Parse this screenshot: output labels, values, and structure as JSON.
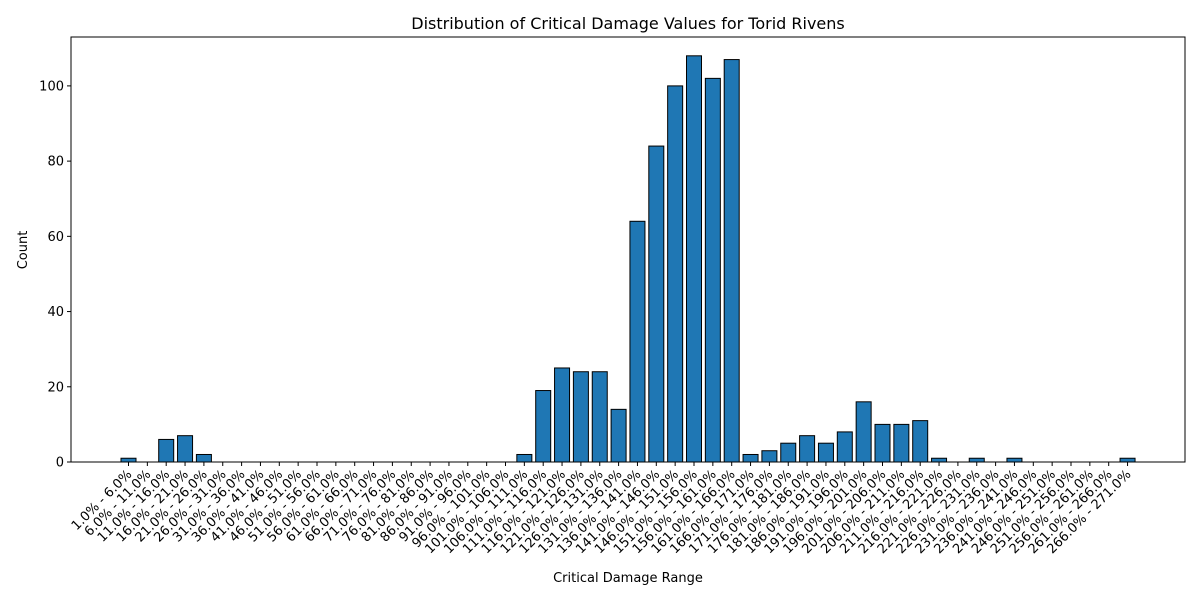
{
  "chart_data": {
    "type": "bar",
    "title": "Distribution of Critical Damage Values for Torid Rivens",
    "xlabel": "Critical Damage Range",
    "ylabel": "Count",
    "ylim": [
      0,
      113
    ],
    "yticks": [
      0,
      20,
      40,
      60,
      80,
      100
    ],
    "grid": false,
    "bar_color": "#1f77b4",
    "edge_color": "#000000",
    "categories": [
      "1.0% - 6.0%",
      "6.0% - 11.0%",
      "11.0% - 16.0%",
      "16.0% - 21.0%",
      "21.0% - 26.0%",
      "26.0% - 31.0%",
      "31.0% - 36.0%",
      "36.0% - 41.0%",
      "41.0% - 46.0%",
      "46.0% - 51.0%",
      "51.0% - 56.0%",
      "56.0% - 61.0%",
      "61.0% - 66.0%",
      "66.0% - 71.0%",
      "71.0% - 76.0%",
      "76.0% - 81.0%",
      "81.0% - 86.0%",
      "86.0% - 91.0%",
      "91.0% - 96.0%",
      "96.0% - 101.0%",
      "101.0% - 106.0%",
      "106.0% - 111.0%",
      "111.0% - 116.0%",
      "116.0% - 121.0%",
      "121.0% - 126.0%",
      "126.0% - 131.0%",
      "131.0% - 136.0%",
      "136.0% - 141.0%",
      "141.0% - 146.0%",
      "146.0% - 151.0%",
      "151.0% - 156.0%",
      "156.0% - 161.0%",
      "161.0% - 166.0%",
      "166.0% - 171.0%",
      "171.0% - 176.0%",
      "176.0% - 181.0%",
      "181.0% - 186.0%",
      "186.0% - 191.0%",
      "191.0% - 196.0%",
      "196.0% - 201.0%",
      "201.0% - 206.0%",
      "206.0% - 211.0%",
      "211.0% - 216.0%",
      "216.0% - 221.0%",
      "221.0% - 226.0%",
      "226.0% - 231.0%",
      "231.0% - 236.0%",
      "236.0% - 241.0%",
      "241.0% - 246.0%",
      "246.0% - 251.0%",
      "251.0% - 256.0%",
      "256.0% - 261.0%",
      "261.0% - 266.0%",
      "266.0% - 271.0%"
    ],
    "values": [
      1,
      0,
      6,
      7,
      2,
      0,
      0,
      0,
      0,
      0,
      0,
      0,
      0,
      0,
      0,
      0,
      0,
      0,
      0,
      0,
      0,
      2,
      19,
      25,
      24,
      24,
      14,
      64,
      84,
      100,
      108,
      102,
      107,
      2,
      3,
      5,
      7,
      5,
      8,
      16,
      10,
      10,
      11,
      1,
      0,
      1,
      0,
      1,
      0,
      0,
      0,
      0,
      0,
      1
    ]
  }
}
